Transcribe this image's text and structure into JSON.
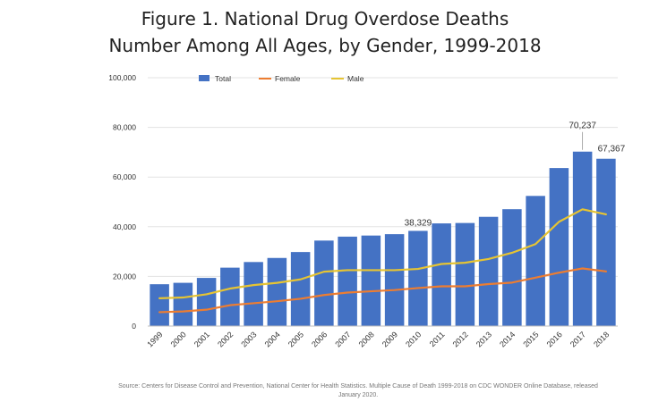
{
  "colors": {
    "total": "#4472C4",
    "female": "#ED7D31",
    "male": "#E6C433",
    "grid": "#e3e3e3",
    "text": "#333333"
  },
  "chart_data": {
    "type": "bar",
    "title": "Figure 1. National Drug Overdose Deaths",
    "subtitle": "Number Among All Ages, by Gender, 1999-2018",
    "source": "Source: Centers for Disease Control and Prevention, National Center for Health Statistics. Multiple Cause of Death 1999-2018 on CDC WONDER Online Database, released January 2020.",
    "categories": [
      "1999",
      "2000",
      "2001",
      "2002",
      "2003",
      "2004",
      "2005",
      "2006",
      "2007",
      "2008",
      "2009",
      "2010",
      "2011",
      "2012",
      "2013",
      "2014",
      "2015",
      "2016",
      "2017",
      "2018"
    ],
    "ylim": [
      0,
      100000
    ],
    "yticks": [
      0,
      20000,
      40000,
      60000,
      80000,
      100000
    ],
    "ytick_labels": [
      "0",
      "20,000",
      "40,000",
      "60,000",
      "80,000",
      "100,000"
    ],
    "grid": true,
    "legend_position": "top",
    "series": [
      {
        "name": "Total",
        "type": "bar",
        "color": "#4472C4",
        "values": [
          16849,
          17415,
          19394,
          23518,
          25785,
          27424,
          29813,
          34425,
          36010,
          36450,
          37004,
          38329,
          41340,
          41502,
          43982,
          47055,
          52404,
          63632,
          70237,
          67367
        ]
      },
      {
        "name": "Female",
        "type": "line",
        "color": "#ED7D31",
        "values": [
          5600,
          5900,
          6600,
          8400,
          9200,
          10000,
          11000,
          12500,
          13500,
          14000,
          14500,
          15300,
          16000,
          16000,
          16900,
          17500,
          19500,
          21500,
          23200,
          22000
        ]
      },
      {
        "name": "Male",
        "type": "line",
        "color": "#E6C433",
        "values": [
          11200,
          11500,
          12800,
          15100,
          16500,
          17400,
          18800,
          21900,
          22500,
          22500,
          22500,
          23000,
          25000,
          25500,
          27000,
          29500,
          33000,
          42000,
          47000,
          45000
        ]
      }
    ],
    "data_labels": [
      {
        "category": "2010",
        "text": "38,329"
      },
      {
        "category": "2017",
        "text": "70,237"
      },
      {
        "category": "2018",
        "text": "67,367"
      }
    ]
  }
}
